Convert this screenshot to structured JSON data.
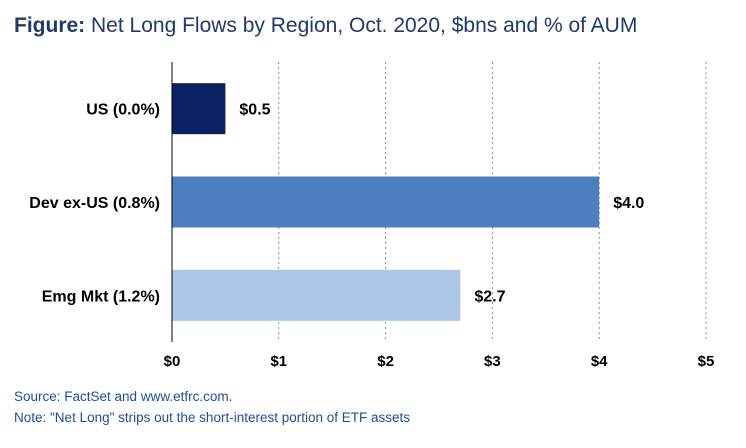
{
  "title": {
    "prefix": "Figure:",
    "text": "Net Long Flows by Region, Oct. 2020, $bns and % of AUM"
  },
  "notes": [
    "Source: FactSet and www.etfrc.com.",
    "Note: \"Net Long\" strips out the short-interest portion of ETF assets"
  ],
  "chart_data": {
    "type": "bar",
    "orientation": "horizontal",
    "title": "Net Long Flows by Region, Oct. 2020, $bns and % of AUM",
    "categories": [
      "US (0.0%)",
      "Dev ex-US (0.8%)",
      "Emg Mkt (1.2%)"
    ],
    "values": [
      0.5,
      4.0,
      2.7
    ],
    "data_labels": [
      "$0.5",
      "$4.0",
      "$2.7"
    ],
    "bar_colors": [
      "#0c2161",
      "#4d7fbf",
      "#aec6e7"
    ],
    "xlim": [
      0,
      5
    ],
    "x_ticks": [
      0,
      1,
      2,
      3,
      4,
      5
    ],
    "x_tick_labels": [
      "$0",
      "$1",
      "$2",
      "$3",
      "$4",
      "$5"
    ],
    "grid": "vertical dotted",
    "xlabel": "",
    "ylabel": ""
  }
}
